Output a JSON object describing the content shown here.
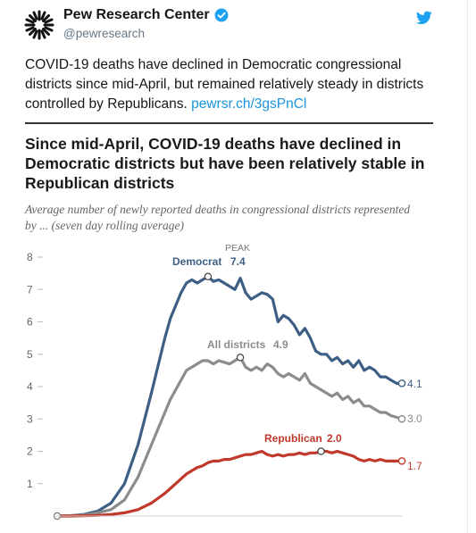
{
  "tweet_header": {
    "account_name": "Pew Research Center",
    "handle": "@pewresearch",
    "verified_icon": "verified-badge-icon",
    "brand_icon": "twitter-bird-icon"
  },
  "tweet": {
    "text": "COVID-19 deaths have declined in Democratic congressional districts since mid-April, but remained relatively steady in districts controlled by Republicans.",
    "link": "pewrsr.ch/3gsPnCl"
  },
  "colors": {
    "democrat": "#3e5f85",
    "all_districts": "#8c8c8c",
    "republican": "#c0392b",
    "twitter_blue": "#1da1f2"
  },
  "chart_data": {
    "type": "line",
    "title": "Since mid-April, COVID-19 deaths have declined in Democratic districts but have been relatively stable in Republican districts",
    "subtitle": "Average number of newly reported deaths in congressional districts represented by ... (seven day rolling average)",
    "ylim": [
      0,
      8
    ],
    "yticks": [
      "8",
      "7",
      "6",
      "5",
      "4",
      "3",
      "2",
      "1"
    ],
    "grid": false,
    "peak_label": "PEAK",
    "x": [
      0,
      5,
      10,
      15,
      20,
      25,
      30,
      35,
      40,
      42,
      44,
      46,
      48,
      50,
      52,
      54,
      56,
      58,
      60,
      62,
      64,
      66,
      68,
      70,
      72,
      74,
      76,
      78,
      80,
      82,
      84,
      86,
      88,
      90,
      92,
      94,
      96,
      98,
      100,
      102,
      104,
      106,
      108,
      110,
      112,
      114,
      116,
      118,
      120,
      122,
      124,
      126,
      128
    ],
    "series": [
      {
        "name": "Democrat",
        "label": "Democrat",
        "peak_value": "7.4",
        "end_value": "4.1",
        "color": "#3e5f85",
        "values": [
          0.0,
          0.01,
          0.05,
          0.15,
          0.4,
          1.0,
          2.2,
          3.8,
          5.5,
          6.1,
          6.5,
          6.9,
          7.2,
          7.3,
          7.2,
          7.3,
          7.4,
          7.25,
          7.3,
          7.2,
          7.1,
          7.0,
          7.35,
          6.9,
          6.7,
          6.8,
          6.9,
          6.85,
          6.7,
          6.0,
          6.2,
          6.1,
          5.9,
          5.6,
          5.8,
          5.5,
          5.1,
          5.0,
          5.0,
          4.8,
          4.9,
          4.7,
          4.8,
          4.6,
          4.8,
          4.5,
          4.6,
          4.5,
          4.3,
          4.3,
          4.2,
          4.1,
          4.1
        ]
      },
      {
        "name": "All districts",
        "label": "All districts",
        "peak_value": "4.9",
        "end_value": "3.0",
        "color": "#8c8c8c",
        "values": [
          0.0,
          0.01,
          0.03,
          0.1,
          0.2,
          0.5,
          1.2,
          2.2,
          3.2,
          3.6,
          3.9,
          4.2,
          4.5,
          4.6,
          4.7,
          4.8,
          4.8,
          4.7,
          4.8,
          4.75,
          4.7,
          4.8,
          4.9,
          4.6,
          4.5,
          4.6,
          4.5,
          4.7,
          4.6,
          4.4,
          4.3,
          4.4,
          4.3,
          4.2,
          4.4,
          4.1,
          4.0,
          3.9,
          3.8,
          3.7,
          3.8,
          3.6,
          3.7,
          3.5,
          3.6,
          3.4,
          3.4,
          3.3,
          3.2,
          3.2,
          3.1,
          3.05,
          3.0
        ]
      },
      {
        "name": "Republican",
        "label": "Republican",
        "peak_value": "2.0",
        "end_value": "1.7",
        "color": "#c0392b",
        "values": [
          0.0,
          0.0,
          0.01,
          0.02,
          0.05,
          0.1,
          0.2,
          0.4,
          0.7,
          0.85,
          1.0,
          1.15,
          1.3,
          1.4,
          1.5,
          1.55,
          1.65,
          1.7,
          1.7,
          1.75,
          1.75,
          1.8,
          1.85,
          1.9,
          1.9,
          1.95,
          2.0,
          1.9,
          1.85,
          1.9,
          1.85,
          1.9,
          1.9,
          1.95,
          1.9,
          1.95,
          1.95,
          2.0,
          2.0,
          1.95,
          2.0,
          1.95,
          1.9,
          1.85,
          1.75,
          1.7,
          1.75,
          1.7,
          1.75,
          1.7,
          1.7,
          1.7,
          1.7
        ]
      }
    ]
  }
}
